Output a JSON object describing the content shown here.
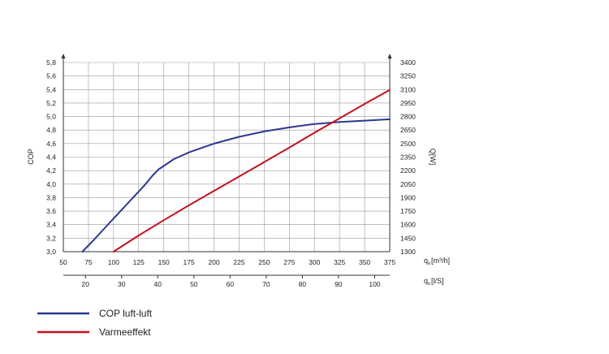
{
  "chart_data": {
    "type": "line",
    "x_primary": {
      "label": "q",
      "label_sub": "v",
      "label_unit": "[m³/h]",
      "ticks": [
        "50",
        "75",
        "100",
        "125",
        "150",
        "175",
        "200",
        "225",
        "250",
        "275",
        "300",
        "325",
        "350",
        "375"
      ],
      "range": [
        50,
        375
      ]
    },
    "x_secondary": {
      "label": "q",
      "label_sub": "v",
      "label_unit": "[l/S]",
      "ticks": [
        "20",
        "30",
        "40",
        "50",
        "60",
        "70",
        "80",
        "90",
        "100"
      ]
    },
    "y_left": {
      "label": "COP",
      "ticks": [
        "3,0",
        "3,2",
        "3,4",
        "3,6",
        "3,8",
        "4,0",
        "4,2",
        "4,4",
        "4,6",
        "4,8",
        "5,0",
        "5,2",
        "5,4",
        "5,6",
        "5,8"
      ],
      "range": [
        3.0,
        5.8
      ]
    },
    "y_right": {
      "label": "Q[W]",
      "ticks": [
        "1300",
        "1450",
        "1600",
        "1750",
        "1900",
        "2050",
        "2200",
        "2350",
        "2500",
        "2650",
        "2800",
        "2950",
        "3100",
        "3250",
        "3400"
      ],
      "range": [
        1300,
        3400
      ]
    },
    "grid": true,
    "series": [
      {
        "name": "COP luft-luft",
        "color": "#2b3990",
        "axis": "left",
        "x": [
          69,
          80,
          90,
          100,
          110,
          120,
          130,
          139,
          145,
          160,
          175,
          200,
          225,
          250,
          275,
          300,
          325,
          350,
          375
        ],
        "y": [
          3.0,
          3.17,
          3.33,
          3.49,
          3.65,
          3.81,
          3.97,
          4.13,
          4.22,
          4.37,
          4.47,
          4.6,
          4.7,
          4.78,
          4.84,
          4.89,
          4.92,
          4.94,
          4.96
        ]
      },
      {
        "name": "Varmeeffekt",
        "color": "#c1121f",
        "axis": "right",
        "x": [
          100,
          125,
          150,
          175,
          200,
          225,
          250,
          275,
          300,
          325,
          350,
          375
        ],
        "y": [
          1300,
          1480,
          1650,
          1815,
          1975,
          2135,
          2295,
          2455,
          2620,
          2780,
          2940,
          3095
        ]
      }
    ]
  },
  "legend": {
    "items": [
      {
        "label": "COP luft-luft",
        "color": "#2b3990"
      },
      {
        "label": "Varmeeffekt",
        "color": "#c1121f"
      }
    ]
  }
}
